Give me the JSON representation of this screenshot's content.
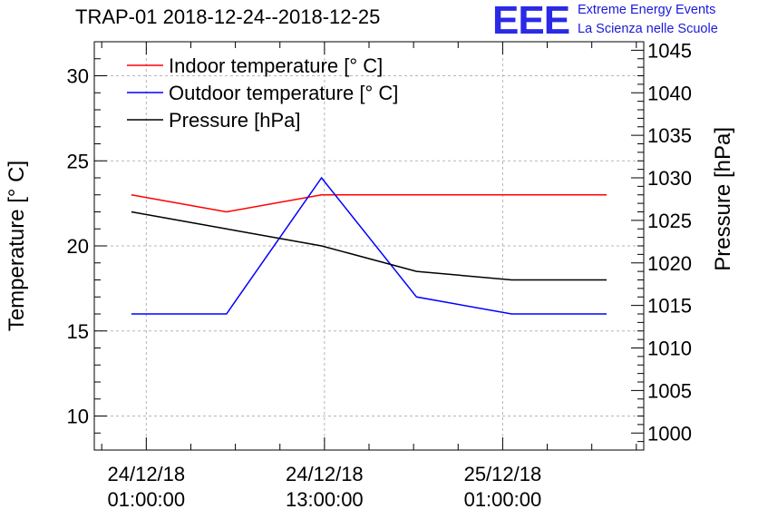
{
  "title": "TRAP-01 2018-12-24--2018-12-25",
  "logo": {
    "mark": "EEE",
    "line1": "Extreme Energy Events",
    "line2": "La Scienza nelle Scuole"
  },
  "chart_data": {
    "type": "line",
    "x_labels": [
      {
        "date": "24/12/18",
        "time": "01:00:00",
        "hour": 1
      },
      {
        "date": "24/12/18",
        "time": "13:00:00",
        "hour": 13
      },
      {
        "date": "25/12/18",
        "time": "01:00:00",
        "hour": 25
      }
    ],
    "xlim": [
      -2.5,
      34.5
    ],
    "y_left": {
      "label": "Temperature [° C]",
      "lim": [
        8,
        32
      ],
      "ticks": [
        10,
        15,
        20,
        25,
        30
      ]
    },
    "y_right": {
      "label": "Pressure [hPa]",
      "lim": [
        998,
        1046
      ],
      "ticks": [
        1000,
        1005,
        1010,
        1015,
        1020,
        1025,
        1030,
        1035,
        1040,
        1045
      ]
    },
    "grid": true,
    "legend_position": "top-left",
    "series": [
      {
        "name": "Indoor temperature [° C]",
        "axis": "left",
        "color": "#ff0000",
        "x": [
          0,
          6.4,
          12.8,
          19.2,
          25.6,
          32
        ],
        "values": [
          23,
          22,
          23,
          23,
          23,
          23
        ]
      },
      {
        "name": "Outdoor temperature [° C]",
        "axis": "left",
        "color": "#0000ff",
        "x": [
          0,
          6.4,
          12.8,
          19.2,
          25.6,
          32
        ],
        "values": [
          16,
          16,
          24,
          17,
          16,
          16
        ]
      },
      {
        "name": "Pressure [hPa]",
        "axis": "right",
        "color": "#000000",
        "x": [
          0,
          6.4,
          12.8,
          19.2,
          25.6,
          32
        ],
        "values": [
          1026,
          1024,
          1022,
          1019,
          1018,
          1018
        ]
      }
    ]
  }
}
